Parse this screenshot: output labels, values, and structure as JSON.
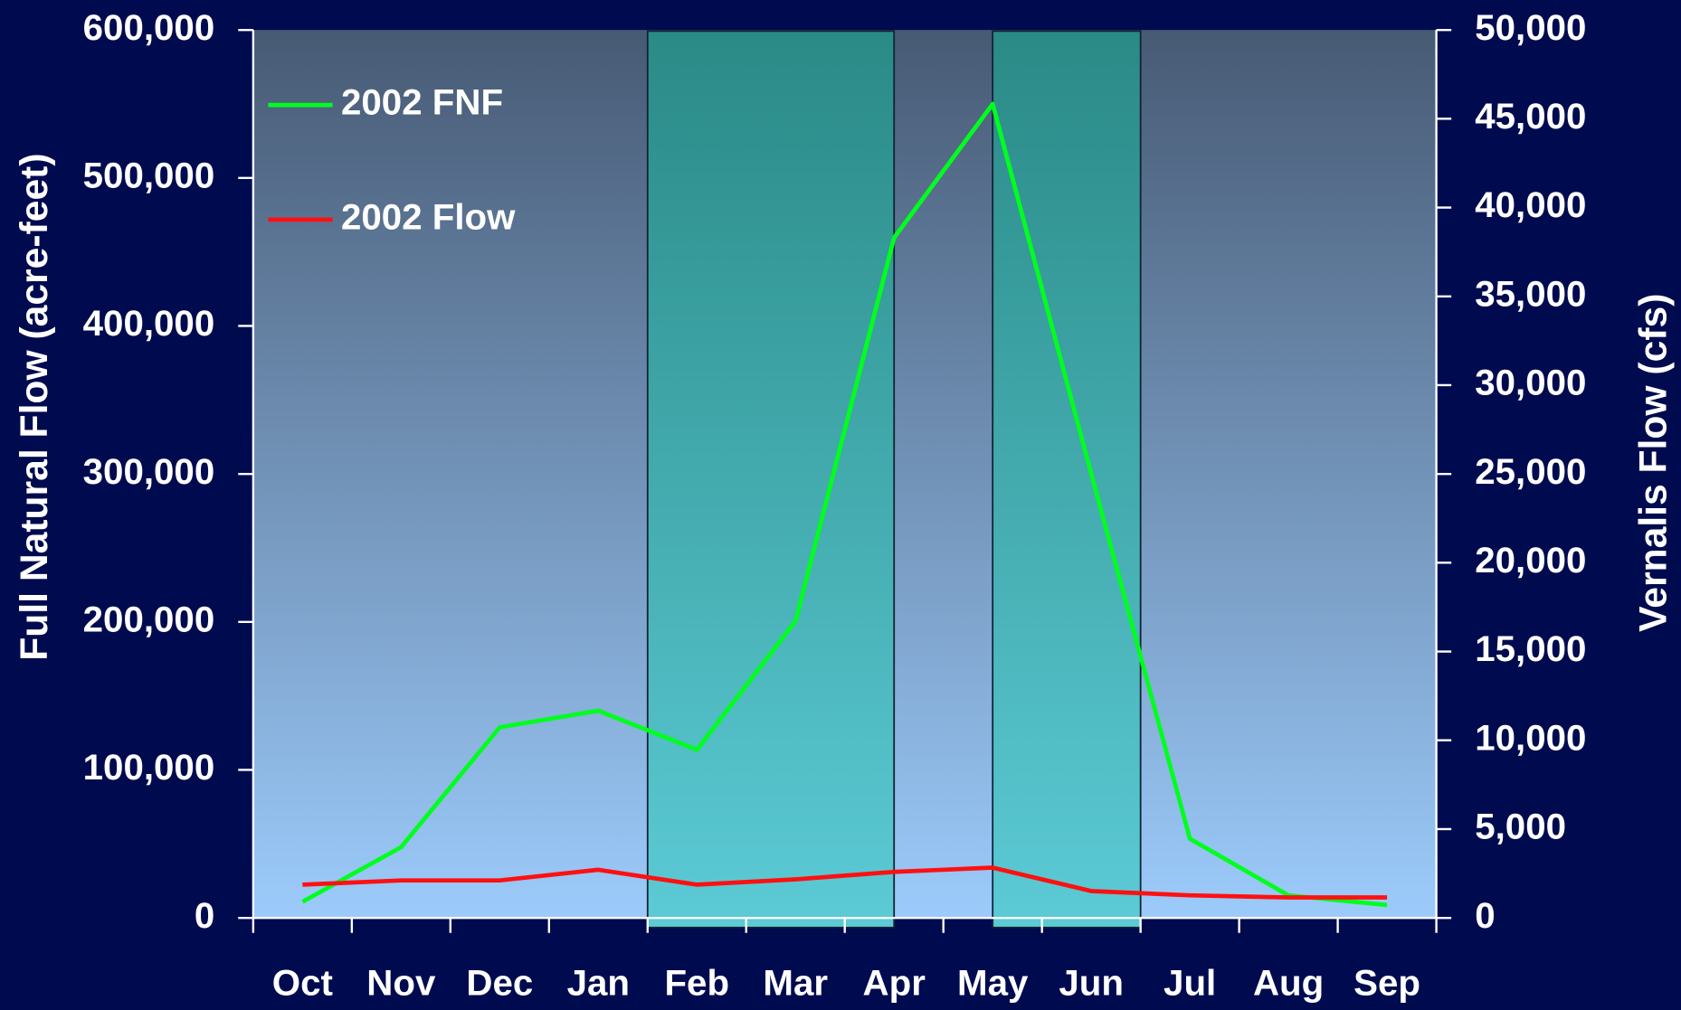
{
  "chart_data": {
    "type": "line",
    "y_label": "Full Natural Flow (acre-feet)",
    "y2_label": "Vernalis Flow (cfs)",
    "categories": [
      "Oct",
      "Nov",
      "Dec",
      "Jan",
      "Feb",
      "Mar",
      "Apr",
      "May",
      "Jun",
      "Jul",
      "Aug",
      "Sep"
    ],
    "series": [
      {
        "name": "2002 FNF",
        "color": "#00ff1e",
        "values": [
          10900,
          47800,
          128800,
          140000,
          113600,
          200500,
          459600,
          550000,
          300000,
          53500,
          15200,
          8700
        ]
      },
      {
        "name": "2002 Flow",
        "color": "#ff1010",
        "axis": "y2",
        "values": [
          1870,
          2110,
          2110,
          2710,
          1870,
          2170,
          2590,
          2830,
          1510,
          1270,
          1150,
          1150
        ]
      }
    ],
    "ylim": [
      0,
      600000
    ],
    "yticks": [
      0,
      {
        "value": 100000,
        "label": "100,000"
      },
      {
        "value": 200000,
        "label": "200,000"
      },
      {
        "value": 300000,
        "label": "300,000"
      },
      {
        "value": 400000,
        "label": "400,000"
      },
      {
        "value": 500000,
        "label": "500,000"
      },
      {
        "value": 600000,
        "label": "600,000"
      }
    ],
    "y2lim": [
      0,
      50000
    ],
    "y2ticks": [
      0,
      {
        "value": 5000,
        "label": "5,000"
      },
      {
        "value": 10000,
        "label": "10,000"
      },
      {
        "value": 15000,
        "label": "15,000"
      },
      {
        "value": 20000,
        "label": "20,000"
      },
      {
        "value": 25000,
        "label": "25,000"
      },
      {
        "value": 30000,
        "label": "30,000"
      },
      {
        "value": 35000,
        "label": "35,000"
      },
      {
        "value": 40000,
        "label": "40,000"
      },
      {
        "value": 45000,
        "label": "45,000"
      },
      {
        "value": 50000,
        "label": "50,000"
      }
    ],
    "legend": "upper left"
  }
}
